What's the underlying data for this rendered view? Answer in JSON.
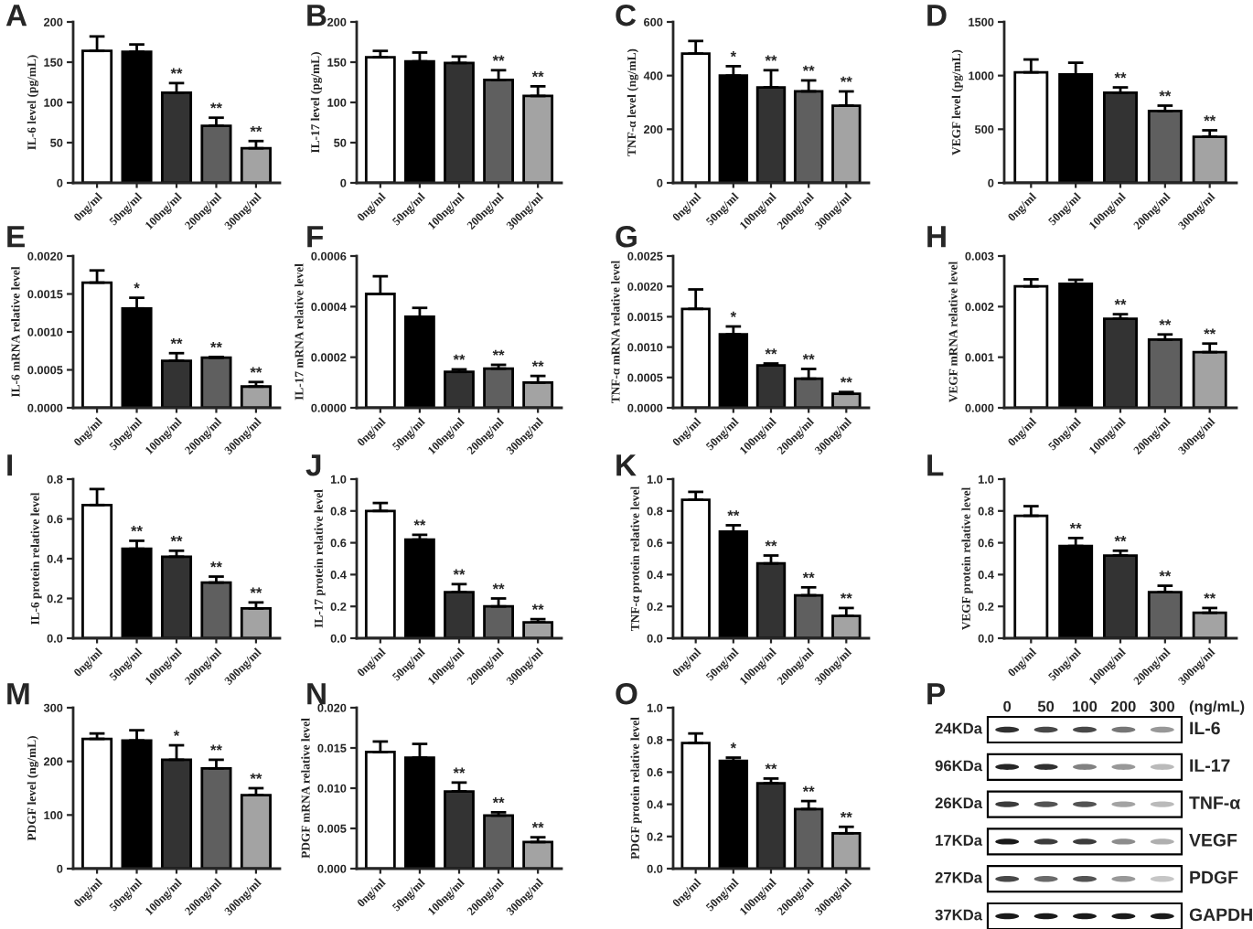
{
  "chart_data": [
    {
      "type": "bar",
      "title": "A",
      "ylabel": "IL-6 level (pg/mL)",
      "categories": [
        "0ng/ml",
        "50ng/ml",
        "100ng/ml",
        "200ng/ml",
        "300ng/ml"
      ],
      "values": [
        164,
        163,
        112,
        71,
        43
      ],
      "colors": [
        "#ffffff",
        "#000000",
        "#333333",
        "#5f5f5f",
        "#a3a3a3"
      ],
      "errors": [
        [
          164,
          182
        ],
        [
          163,
          172
        ],
        [
          112,
          124
        ],
        [
          71,
          81
        ],
        [
          43,
          52
        ]
      ],
      "ylim": [
        0,
        200
      ],
      "yticks": [
        0,
        50,
        100,
        150,
        200
      ],
      "annotations": [
        {
          "text": "**",
          "x": "100ng/ml",
          "y": 124
        },
        {
          "text": "**",
          "x": "200ng/ml",
          "y": 81
        },
        {
          "text": "**",
          "x": "300ng/ml",
          "y": 52
        }
      ]
    },
    {
      "type": "bar",
      "title": "B",
      "ylabel": "IL-17 level (pg/mL)",
      "categories": [
        "0ng/ml",
        "50ng/ml",
        "100ng/ml",
        "200ng/ml",
        "300ng/ml"
      ],
      "values": [
        156,
        151,
        149,
        128,
        108
      ],
      "colors": [
        "#ffffff",
        "#000000",
        "#333333",
        "#5f5f5f",
        "#a3a3a3"
      ],
      "errors": [
        [
          156,
          164
        ],
        [
          151,
          162
        ],
        [
          149,
          157
        ],
        [
          128,
          140
        ],
        [
          108,
          120
        ]
      ],
      "ylim": [
        0,
        200
      ],
      "yticks": [
        0,
        50,
        100,
        150,
        200
      ],
      "annotations": [
        {
          "text": "**",
          "x": "200ng/ml",
          "y": 140
        },
        {
          "text": "**",
          "x": "300ng/ml",
          "y": 120
        }
      ]
    },
    {
      "type": "bar",
      "title": "C",
      "ylabel": "TNF-α level (ng/mL)",
      "categories": [
        "0ng/ml",
        "50ng/ml",
        "100ng/ml",
        "200ng/ml",
        "300ng/ml"
      ],
      "values": [
        482,
        400,
        356,
        341,
        288
      ],
      "colors": [
        "#ffffff",
        "#000000",
        "#333333",
        "#5f5f5f",
        "#a3a3a3"
      ],
      "errors": [
        [
          482,
          529
        ],
        [
          400,
          435
        ],
        [
          356,
          420
        ],
        [
          341,
          382
        ],
        [
          288,
          341
        ]
      ],
      "ylim": [
        0,
        600
      ],
      "yticks": [
        0,
        200,
        400,
        600
      ],
      "annotations": [
        {
          "text": "*",
          "x": "50ng/ml",
          "y": 435
        },
        {
          "text": "**",
          "x": "100ng/ml",
          "y": 420
        },
        {
          "text": "**",
          "x": "200ng/ml",
          "y": 382
        },
        {
          "text": "**",
          "x": "300ng/ml",
          "y": 341
        }
      ]
    },
    {
      "type": "bar",
      "title": "D",
      "ylabel": "VEGF level (pg/mL)",
      "categories": [
        "0ng/ml",
        "50ng/ml",
        "100ng/ml",
        "200ng/ml",
        "300ng/ml"
      ],
      "values": [
        1030,
        1010,
        840,
        670,
        430
      ],
      "colors": [
        "#ffffff",
        "#000000",
        "#333333",
        "#5f5f5f",
        "#a3a3a3"
      ],
      "errors": [
        [
          1030,
          1150
        ],
        [
          1010,
          1120
        ],
        [
          840,
          890
        ],
        [
          670,
          720
        ],
        [
          430,
          490
        ]
      ],
      "ylim": [
        0,
        1500
      ],
      "yticks": [
        0,
        500,
        1000,
        1500
      ],
      "annotations": [
        {
          "text": "**",
          "x": "100ng/ml",
          "y": 890
        },
        {
          "text": "**",
          "x": "200ng/ml",
          "y": 720
        },
        {
          "text": "**",
          "x": "300ng/ml",
          "y": 490
        }
      ]
    },
    {
      "type": "bar",
      "title": "E",
      "ylabel": "IL-6 mRNA relative level",
      "categories": [
        "0ng/ml",
        "50ng/ml",
        "100ng/ml",
        "200ng/ml",
        "300ng/ml"
      ],
      "values": [
        0.00165,
        0.00131,
        0.00062,
        0.00066,
        0.00028
      ],
      "colors": [
        "#ffffff",
        "#000000",
        "#333333",
        "#5f5f5f",
        "#a3a3a3"
      ],
      "errors": [
        [
          0.00165,
          0.00181
        ],
        [
          0.00131,
          0.00145
        ],
        [
          0.00062,
          0.00072
        ],
        [
          0.00066,
          0.00067
        ],
        [
          0.00028,
          0.00034
        ]
      ],
      "ylim": [
        0,
        0.002
      ],
      "yticks": [
        {
          "value": 0,
          "label": "0.0000"
        },
        {
          "value": 0.0005,
          "label": "0.0005"
        },
        {
          "value": 0.001,
          "label": "0.0010"
        },
        {
          "value": 0.0015,
          "label": "0.0015"
        },
        {
          "value": 0.002,
          "label": "0.0020"
        }
      ],
      "annotations": [
        {
          "text": "*",
          "x": "50ng/ml",
          "y": 0.00145
        },
        {
          "text": "**",
          "x": "100ng/ml",
          "y": 0.00072
        },
        {
          "text": "**",
          "x": "200ng/ml",
          "y": 0.00067
        },
        {
          "text": "**",
          "x": "300ng/ml",
          "y": 0.00034
        }
      ]
    },
    {
      "type": "bar",
      "title": "F",
      "ylabel": "IL-17 mRNA relative level",
      "categories": [
        "0ng/ml",
        "50ng/ml",
        "100ng/ml",
        "200ng/ml",
        "300ng/ml"
      ],
      "values": [
        0.00045,
        0.00036,
        0.000142,
        0.000155,
        0.0001
      ],
      "colors": [
        "#ffffff",
        "#000000",
        "#333333",
        "#5f5f5f",
        "#a3a3a3"
      ],
      "errors": [
        [
          0.00045,
          0.00052
        ],
        [
          0.00036,
          0.000395
        ],
        [
          0.000142,
          0.000152
        ],
        [
          0.000155,
          0.00017
        ],
        [
          0.0001,
          0.000126
        ]
      ],
      "ylim": [
        0,
        0.0006
      ],
      "yticks": [
        {
          "value": 0,
          "label": "0.0000"
        },
        {
          "value": 0.0002,
          "label": "0.0002"
        },
        {
          "value": 0.0004,
          "label": "0.0004"
        },
        {
          "value": 0.0006,
          "label": "0.0006"
        }
      ],
      "annotations": [
        {
          "text": "**",
          "x": "100ng/ml",
          "y": 0.000152
        },
        {
          "text": "**",
          "x": "200ng/ml",
          "y": 0.00017
        },
        {
          "text": "**",
          "x": "300ng/ml",
          "y": 0.000126
        }
      ]
    },
    {
      "type": "bar",
      "title": "G",
      "ylabel": "TNF-α mRNA relative level",
      "categories": [
        "0ng/ml",
        "50ng/ml",
        "100ng/ml",
        "200ng/ml",
        "300ng/ml"
      ],
      "values": [
        0.00163,
        0.00121,
        0.0007,
        0.00048,
        0.00023
      ],
      "colors": [
        "#ffffff",
        "#000000",
        "#333333",
        "#5f5f5f",
        "#a3a3a3"
      ],
      "errors": [
        [
          0.00163,
          0.00195
        ],
        [
          0.00121,
          0.00134
        ],
        [
          0.0007,
          0.00073
        ],
        [
          0.00048,
          0.00064
        ],
        [
          0.00023,
          0.00026
        ]
      ],
      "ylim": [
        0,
        0.0025
      ],
      "yticks": [
        {
          "value": 0,
          "label": "0.0000"
        },
        {
          "value": 0.0005,
          "label": "0.0005"
        },
        {
          "value": 0.001,
          "label": "0.0010"
        },
        {
          "value": 0.0015,
          "label": "0.0015"
        },
        {
          "value": 0.002,
          "label": "0.0020"
        },
        {
          "value": 0.0025,
          "label": "0.0025"
        }
      ],
      "annotations": [
        {
          "text": "*",
          "x": "50ng/ml",
          "y": 0.00134
        },
        {
          "text": "**",
          "x": "100ng/ml",
          "y": 0.00073
        },
        {
          "text": "**",
          "x": "200ng/ml",
          "y": 0.00064
        },
        {
          "text": "**",
          "x": "300ng/ml",
          "y": 0.00026
        }
      ]
    },
    {
      "type": "bar",
      "title": "H",
      "ylabel": "VEGF mRNA relative level",
      "categories": [
        "0ng/ml",
        "50ng/ml",
        "100ng/ml",
        "200ng/ml",
        "300ng/ml"
      ],
      "values": [
        0.0024,
        0.00245,
        0.00176,
        0.00135,
        0.0011
      ],
      "colors": [
        "#ffffff",
        "#000000",
        "#333333",
        "#5f5f5f",
        "#a3a3a3"
      ],
      "errors": [
        [
          0.0024,
          0.00254
        ],
        [
          0.00245,
          0.00253
        ],
        [
          0.00176,
          0.00185
        ],
        [
          0.00135,
          0.00145
        ],
        [
          0.0011,
          0.00127
        ]
      ],
      "ylim": [
        0,
        0.003
      ],
      "yticks": [
        {
          "value": 0,
          "label": "0.000"
        },
        {
          "value": 0.001,
          "label": "0.001"
        },
        {
          "value": 0.002,
          "label": "0.002"
        },
        {
          "value": 0.003,
          "label": "0.003"
        }
      ],
      "annotations": [
        {
          "text": "**",
          "x": "100ng/ml",
          "y": 0.00185
        },
        {
          "text": "**",
          "x": "200ng/ml",
          "y": 0.00145
        },
        {
          "text": "**",
          "x": "300ng/ml",
          "y": 0.00127
        }
      ]
    },
    {
      "type": "bar",
      "title": "I",
      "ylabel": "IL-6 protein relative level",
      "categories": [
        "0ng/ml",
        "50ng/ml",
        "100ng/ml",
        "200ng/ml",
        "300ng/ml"
      ],
      "values": [
        0.67,
        0.45,
        0.41,
        0.28,
        0.15
      ],
      "colors": [
        "#ffffff",
        "#000000",
        "#333333",
        "#5f5f5f",
        "#a3a3a3"
      ],
      "errors": [
        [
          0.67,
          0.75
        ],
        [
          0.45,
          0.49
        ],
        [
          0.41,
          0.44
        ],
        [
          0.28,
          0.31
        ],
        [
          0.15,
          0.18
        ]
      ],
      "ylim": [
        0,
        0.8
      ],
      "yticks": [
        {
          "value": 0,
          "label": "0.0"
        },
        0.2,
        0.4,
        0.6,
        0.8
      ],
      "annotations": [
        {
          "text": "**",
          "x": "50ng/ml",
          "y": 0.49
        },
        {
          "text": "**",
          "x": "100ng/ml",
          "y": 0.44
        },
        {
          "text": "**",
          "x": "200ng/ml",
          "y": 0.31
        },
        {
          "text": "**",
          "x": "300ng/ml",
          "y": 0.18
        }
      ]
    },
    {
      "type": "bar",
      "title": "J",
      "ylabel": "IL-17 protein relative level",
      "categories": [
        "0ng/ml",
        "50ng/ml",
        "100ng/ml",
        "200ng/ml",
        "300ng/ml"
      ],
      "values": [
        0.8,
        0.62,
        0.29,
        0.2,
        0.1
      ],
      "colors": [
        "#ffffff",
        "#000000",
        "#333333",
        "#5f5f5f",
        "#a3a3a3"
      ],
      "errors": [
        [
          0.8,
          0.85
        ],
        [
          0.62,
          0.65
        ],
        [
          0.29,
          0.34
        ],
        [
          0.2,
          0.25
        ],
        [
          0.1,
          0.12
        ]
      ],
      "ylim": [
        0,
        1
      ],
      "yticks": [
        {
          "value": 0,
          "label": "0.0"
        },
        0.2,
        0.4,
        0.6,
        0.8,
        {
          "value": 1,
          "label": "1.0"
        }
      ],
      "annotations": [
        {
          "text": "**",
          "x": "50ng/ml",
          "y": 0.65
        },
        {
          "text": "**",
          "x": "100ng/ml",
          "y": 0.34
        },
        {
          "text": "**",
          "x": "200ng/ml",
          "y": 0.25
        },
        {
          "text": "**",
          "x": "300ng/ml",
          "y": 0.12
        }
      ]
    },
    {
      "type": "bar",
      "title": "K",
      "ylabel": "TNF-α protein relative level",
      "categories": [
        "0ng/ml",
        "50ng/ml",
        "100ng/ml",
        "200ng/ml",
        "300ng/ml"
      ],
      "values": [
        0.87,
        0.67,
        0.47,
        0.27,
        0.14
      ],
      "colors": [
        "#ffffff",
        "#000000",
        "#333333",
        "#5f5f5f",
        "#a3a3a3"
      ],
      "errors": [
        [
          0.87,
          0.92
        ],
        [
          0.67,
          0.71
        ],
        [
          0.47,
          0.52
        ],
        [
          0.27,
          0.32
        ],
        [
          0.14,
          0.19
        ]
      ],
      "ylim": [
        0,
        1
      ],
      "yticks": [
        {
          "value": 0,
          "label": "0.0"
        },
        0.2,
        0.4,
        0.6,
        0.8,
        {
          "value": 1,
          "label": "1.0"
        }
      ],
      "annotations": [
        {
          "text": "**",
          "x": "50ng/ml",
          "y": 0.71
        },
        {
          "text": "**",
          "x": "100ng/ml",
          "y": 0.52
        },
        {
          "text": "**",
          "x": "200ng/ml",
          "y": 0.32
        },
        {
          "text": "**",
          "x": "300ng/ml",
          "y": 0.19
        }
      ]
    },
    {
      "type": "bar",
      "title": "L",
      "ylabel": "VEGF protein relative level",
      "categories": [
        "0ng/ml",
        "50ng/ml",
        "100ng/ml",
        "200ng/ml",
        "300ng/ml"
      ],
      "values": [
        0.77,
        0.58,
        0.52,
        0.29,
        0.16
      ],
      "colors": [
        "#ffffff",
        "#000000",
        "#333333",
        "#5f5f5f",
        "#a3a3a3"
      ],
      "errors": [
        [
          0.77,
          0.83
        ],
        [
          0.58,
          0.63
        ],
        [
          0.52,
          0.55
        ],
        [
          0.29,
          0.33
        ],
        [
          0.16,
          0.19
        ]
      ],
      "ylim": [
        0,
        1
      ],
      "yticks": [
        {
          "value": 0,
          "label": "0.0"
        },
        0.2,
        0.4,
        0.6,
        0.8,
        {
          "value": 1,
          "label": "1.0"
        }
      ],
      "annotations": [
        {
          "text": "**",
          "x": "50ng/ml",
          "y": 0.63
        },
        {
          "text": "**",
          "x": "100ng/ml",
          "y": 0.55
        },
        {
          "text": "**",
          "x": "200ng/ml",
          "y": 0.33
        },
        {
          "text": "**",
          "x": "300ng/ml",
          "y": 0.19
        }
      ]
    },
    {
      "type": "bar",
      "title": "M",
      "ylabel": "PDGF level (ng/mL)",
      "categories": [
        "0ng/ml",
        "50ng/ml",
        "100ng/ml",
        "200ng/ml",
        "300ng/ml"
      ],
      "values": [
        242,
        239,
        203,
        187,
        137
      ],
      "colors": [
        "#ffffff",
        "#000000",
        "#333333",
        "#5f5f5f",
        "#a3a3a3"
      ],
      "errors": [
        [
          242,
          252
        ],
        [
          239,
          258
        ],
        [
          203,
          230
        ],
        [
          187,
          203
        ],
        [
          137,
          150
        ]
      ],
      "ylim": [
        0,
        300
      ],
      "yticks": [
        0,
        100,
        200,
        300
      ],
      "annotations": [
        {
          "text": "*",
          "x": "100ng/ml",
          "y": 230
        },
        {
          "text": "**",
          "x": "200ng/ml",
          "y": 203
        },
        {
          "text": "**",
          "x": "300ng/ml",
          "y": 150
        }
      ]
    },
    {
      "type": "bar",
      "title": "N",
      "ylabel": "PDGF mRNA relative level",
      "categories": [
        "0ng/ml",
        "50ng/ml",
        "100ng/ml",
        "200ng/ml",
        "300ng/ml"
      ],
      "values": [
        0.0145,
        0.0138,
        0.0096,
        0.0066,
        0.0033
      ],
      "colors": [
        "#ffffff",
        "#000000",
        "#333333",
        "#5f5f5f",
        "#a3a3a3"
      ],
      "errors": [
        [
          0.0145,
          0.0158
        ],
        [
          0.0138,
          0.0155
        ],
        [
          0.0096,
          0.0107
        ],
        [
          0.0066,
          0.007
        ],
        [
          0.0033,
          0.0039
        ]
      ],
      "ylim": [
        0,
        0.02
      ],
      "yticks": [
        {
          "value": 0,
          "label": "0.000"
        },
        {
          "value": 0.005,
          "label": "0.005"
        },
        {
          "value": 0.01,
          "label": "0.010"
        },
        {
          "value": 0.015,
          "label": "0.015"
        },
        {
          "value": 0.02,
          "label": "0.020"
        }
      ],
      "annotations": [
        {
          "text": "**",
          "x": "100ng/ml",
          "y": 0.0107
        },
        {
          "text": "**",
          "x": "200ng/ml",
          "y": 0.007
        },
        {
          "text": "**",
          "x": "300ng/ml",
          "y": 0.0039
        }
      ]
    },
    {
      "type": "bar",
      "title": "O",
      "ylabel": "PDGF protein relative level",
      "categories": [
        "0ng/ml",
        "50ng/ml",
        "100ng/ml",
        "200ng/ml",
        "300ng/ml"
      ],
      "values": [
        0.78,
        0.67,
        0.53,
        0.37,
        0.22
      ],
      "colors": [
        "#ffffff",
        "#000000",
        "#333333",
        "#5f5f5f",
        "#a3a3a3"
      ],
      "errors": [
        [
          0.78,
          0.84
        ],
        [
          0.67,
          0.69
        ],
        [
          0.53,
          0.56
        ],
        [
          0.37,
          0.42
        ],
        [
          0.22,
          0.26
        ]
      ],
      "ylim": [
        0,
        1
      ],
      "yticks": [
        {
          "value": 0,
          "label": "0.0"
        },
        0.2,
        0.4,
        0.6,
        0.8,
        {
          "value": 1,
          "label": "1.0"
        }
      ],
      "annotations": [
        {
          "text": "*",
          "x": "50ng/ml",
          "y": 0.69
        },
        {
          "text": "**",
          "x": "100ng/ml",
          "y": 0.56
        },
        {
          "text": "**",
          "x": "200ng/ml",
          "y": 0.42
        },
        {
          "text": "**",
          "x": "300ng/ml",
          "y": 0.26
        }
      ]
    },
    {
      "type": "other",
      "title": "P",
      "categories": [
        "0",
        "50",
        "100",
        "200",
        "300"
      ],
      "xlabel": "(ng/mL)",
      "y_categories": [
        "24KDa",
        "96KDa",
        "26KDa",
        "17KDa",
        "27KDa",
        "37KDa"
      ],
      "y2_categories": [
        "IL-6",
        "IL-17",
        "TNF-α",
        "VEGF",
        "PDGF",
        "GAPDH"
      ]
    }
  ]
}
